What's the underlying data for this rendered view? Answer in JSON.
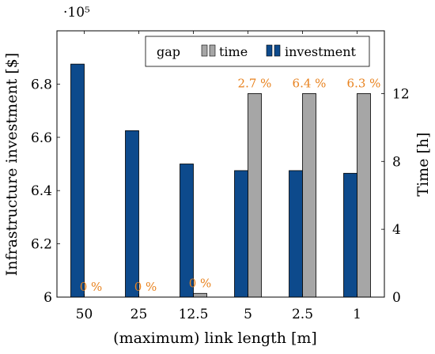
{
  "chart_data": {
    "type": "bar",
    "categories": [
      "50",
      "25",
      "12.5",
      "5",
      "2.5",
      "1"
    ],
    "xlabel": "(maximum) link length [m]",
    "ylabel_left": "Infrastructure investment [$]",
    "ylabel_right": "Time [h]",
    "left_axis": {
      "ylim": [
        600000,
        700000
      ],
      "ticks": [
        600000,
        620000,
        640000,
        660000,
        680000
      ],
      "tick_labels": [
        "6",
        "6.2",
        "6.4",
        "6.6",
        "6.8"
      ],
      "multiplier_label": "·10⁵"
    },
    "right_axis": {
      "ylim": [
        0,
        15.7
      ],
      "ticks": [
        0,
        4,
        8,
        12
      ],
      "tick_labels": [
        "0",
        "4",
        "8",
        "12"
      ]
    },
    "series": [
      {
        "name": "investment",
        "axis": "left",
        "color": "#0d4a8c",
        "values": [
          687500,
          662500,
          650000,
          647500,
          647500,
          646500
        ]
      },
      {
        "name": "time",
        "axis": "right",
        "color": "#a6a6a6",
        "values": [
          0.0,
          0.0,
          0.22,
          12.0,
          12.0,
          12.0
        ]
      }
    ],
    "gap_labels": [
      "0 %",
      "0 %",
      "0 %",
      "2.7 %",
      "6.4 %",
      "6.3 %"
    ],
    "legend": {
      "position": "top-right",
      "gap_label": "gap",
      "gap_color": "#e8821e",
      "time_label": "time",
      "investment_label": "investment"
    }
  }
}
